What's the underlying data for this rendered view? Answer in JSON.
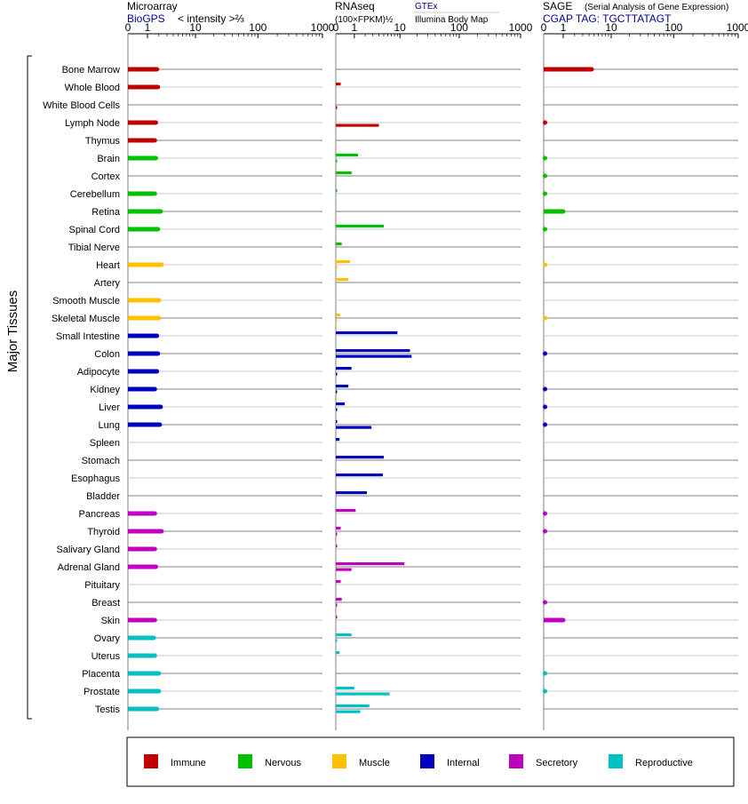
{
  "colors": {
    "immune": "#c00000",
    "nervous": "#00c000",
    "muscle": "#ffc000",
    "internal": "#0000c0",
    "secretory": "#c000c0",
    "reproductive": "#00c0c0"
  },
  "headers": {
    "microarray": {
      "title": "Microarray",
      "source": "BioGPS",
      "unit": "< intensity >⅔"
    },
    "rnaseq": {
      "title": "RNAseq",
      "unit": "(100×FPKM)½",
      "source_a": "GTEx",
      "source_b": "Illumina Body Map"
    },
    "sage": {
      "title": "SAGE",
      "subtitle": "(Serial Analysis of Gene Expression)",
      "tag": "CGAP TAG: TGCTTATAGT"
    }
  },
  "side_label": "Major Tissues",
  "legend": [
    {
      "label": "Immune",
      "color": "#c00000"
    },
    {
      "label": "Nervous",
      "color": "#00c000"
    },
    {
      "label": "Muscle",
      "color": "#ffc000"
    },
    {
      "label": "Internal",
      "color": "#0000c0"
    },
    {
      "label": "Secretory",
      "color": "#c000c0"
    },
    {
      "label": "Reproductive",
      "color": "#00c0c0"
    }
  ],
  "chart_data": {
    "type": "bar",
    "axis_ticks": [
      "0",
      "1",
      "10",
      "100",
      "1000"
    ],
    "xlim": [
      0,
      1000
    ],
    "tissues": [
      {
        "name": "Bone Marrow",
        "system": "immune",
        "microarray": 1.8,
        "gtex": null,
        "ibm": null,
        "sage": 4.5
      },
      {
        "name": "Whole Blood",
        "system": "immune",
        "microarray": 1.9,
        "gtex": 0.2,
        "ibm": null,
        "sage": null
      },
      {
        "name": "White Blood Cells",
        "system": "immune",
        "microarray": null,
        "gtex": null,
        "ibm": 0.01,
        "sage": null
      },
      {
        "name": "Lymph Node",
        "system": "immune",
        "microarray": 1.7,
        "gtex": null,
        "ibm": 4.0,
        "sage": 0.02
      },
      {
        "name": "Thymus",
        "system": "immune",
        "microarray": 1.6,
        "gtex": null,
        "ibm": null,
        "sage": null
      },
      {
        "name": "Brain",
        "system": "nervous",
        "microarray": 1.7,
        "gtex": 1.3,
        "ibm": 0.01,
        "sage": 0.01
      },
      {
        "name": "Cortex",
        "system": "nervous",
        "microarray": null,
        "gtex": 0.8,
        "ibm": null,
        "sage": 0.005
      },
      {
        "name": "Cerebellum",
        "system": "nervous",
        "microarray": 1.6,
        "gtex": 0.01,
        "ibm": null,
        "sage": 0.005
      },
      {
        "name": "Retina",
        "system": "nervous",
        "microarray": 2.2,
        "gtex": null,
        "ibm": null,
        "sage": 1.0
      },
      {
        "name": "Spinal Cord",
        "system": "nervous",
        "microarray": 1.9,
        "gtex": 5.0,
        "ibm": null,
        "sage": 0.01
      },
      {
        "name": "Tibial Nerve",
        "system": "nervous",
        "microarray": null,
        "gtex": 0.25,
        "ibm": null,
        "sage": null
      },
      {
        "name": "Heart",
        "system": "muscle",
        "microarray": 2.3,
        "gtex": 0.7,
        "ibm": 0.01,
        "sage": 0.005
      },
      {
        "name": "Artery",
        "system": "muscle",
        "microarray": null,
        "gtex": 0.6,
        "ibm": null,
        "sage": null
      },
      {
        "name": "Smooth Muscle",
        "system": "muscle",
        "microarray": 2.0,
        "gtex": null,
        "ibm": null,
        "sage": null
      },
      {
        "name": "Skeletal Muscle",
        "system": "muscle",
        "microarray": 2.0,
        "gtex": 0.18,
        "ibm": 0.005,
        "sage": 0.005
      },
      {
        "name": "Small Intestine",
        "system": "internal",
        "microarray": 1.8,
        "gtex": 9.0,
        "ibm": null,
        "sage": null
      },
      {
        "name": "Colon",
        "system": "internal",
        "microarray": 1.9,
        "gtex": 15.0,
        "ibm": 16.0,
        "sage": 0.02
      },
      {
        "name": "Adipocyte",
        "system": "internal",
        "microarray": 1.8,
        "gtex": 0.8,
        "ibm": 0.02,
        "sage": null
      },
      {
        "name": "Kidney",
        "system": "internal",
        "microarray": 1.6,
        "gtex": 0.6,
        "ibm": 0.01,
        "sage": 0.01
      },
      {
        "name": "Liver",
        "system": "internal",
        "microarray": 2.2,
        "gtex": 0.4,
        "ibm": 0.005,
        "sage": 0.01
      },
      {
        "name": "Lung",
        "system": "internal",
        "microarray": 2.1,
        "gtex": 0.05,
        "ibm": 2.8,
        "sage": 0.01
      },
      {
        "name": "Spleen",
        "system": "internal",
        "microarray": null,
        "gtex": 0.15,
        "ibm": null,
        "sage": null
      },
      {
        "name": "Stomach",
        "system": "internal",
        "microarray": null,
        "gtex": 5.0,
        "ibm": null,
        "sage": null
      },
      {
        "name": "Esophagus",
        "system": "internal",
        "microarray": null,
        "gtex": 4.8,
        "ibm": null,
        "sage": null
      },
      {
        "name": "Bladder",
        "system": "internal",
        "microarray": null,
        "gtex": 2.2,
        "ibm": null,
        "sage": null
      },
      {
        "name": "Pancreas",
        "system": "secretory",
        "microarray": 1.6,
        "gtex": 1.1,
        "ibm": null,
        "sage": 0.01
      },
      {
        "name": "Thyroid",
        "system": "secretory",
        "microarray": 2.3,
        "gtex": 0.2,
        "ibm": 0.01,
        "sage": 0.01
      },
      {
        "name": "Salivary Gland",
        "system": "secretory",
        "microarray": 1.6,
        "gtex": 0.01,
        "ibm": null,
        "sage": null
      },
      {
        "name": "Adrenal Gland",
        "system": "secretory",
        "microarray": 1.7,
        "gtex": 12.0,
        "ibm": 0.8,
        "sage": null
      },
      {
        "name": "Pituitary",
        "system": "secretory",
        "microarray": null,
        "gtex": 0.2,
        "ibm": null,
        "sage": null
      },
      {
        "name": "Breast",
        "system": "secretory",
        "microarray": null,
        "gtex": 0.25,
        "ibm": 0.01,
        "sage": 0.01
      },
      {
        "name": "Skin",
        "system": "secretory",
        "microarray": 1.6,
        "gtex": 0.01,
        "ibm": null,
        "sage": 1.0
      },
      {
        "name": "Ovary",
        "system": "reproductive",
        "microarray": 1.5,
        "gtex": 0.8,
        "ibm": 0.01,
        "sage": null
      },
      {
        "name": "Uterus",
        "system": "reproductive",
        "microarray": 1.6,
        "gtex": 0.15,
        "ibm": null,
        "sage": null
      },
      {
        "name": "Placenta",
        "system": "reproductive",
        "microarray": 2.0,
        "gtex": null,
        "ibm": null,
        "sage": 0.005
      },
      {
        "name": "Prostate",
        "system": "reproductive",
        "microarray": 2.0,
        "gtex": 1.0,
        "ibm": 6.5,
        "sage": 0.005
      },
      {
        "name": "Testis",
        "system": "reproductive",
        "microarray": 1.8,
        "gtex": 2.5,
        "ibm": 1.5,
        "sage": null
      }
    ]
  }
}
